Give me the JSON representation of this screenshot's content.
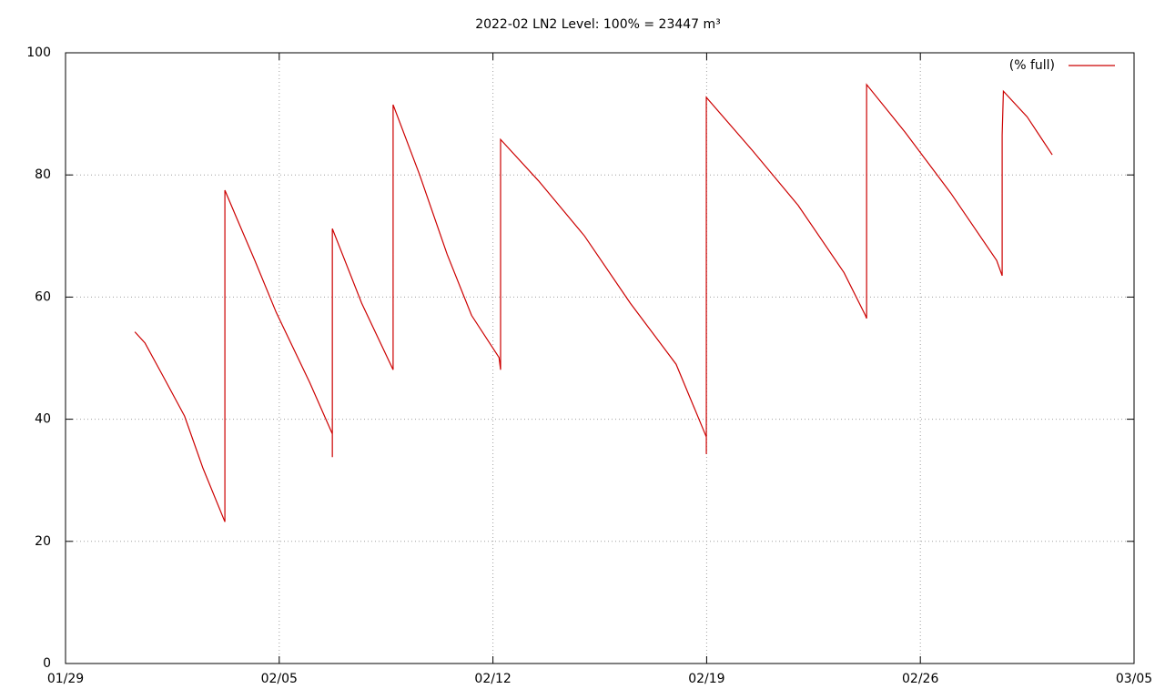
{
  "chart_data": {
    "type": "line",
    "title": "2022-02 LN2 Level: 100% = 23447 m³",
    "x": [
      31.27,
      31.6,
      32.2,
      32.9,
      33.5,
      34.22,
      34.22,
      34.6,
      35.2,
      35.9,
      37.0,
      37.74,
      37.74,
      37.74,
      38.7,
      39.73,
      39.73,
      40.6,
      41.5,
      42.3,
      43.2,
      43.25,
      43.25,
      44.5,
      46.0,
      47.5,
      49.0,
      49.99,
      49.99,
      49.99,
      51.5,
      53.0,
      54.5,
      55.2,
      55.24,
      55.24,
      56.5,
      58.0,
      59.5,
      59.68,
      59.68,
      59.72,
      60.5,
      61.32
    ],
    "series": [
      {
        "name": "(% full)",
        "color": "#cc0000",
        "values": [
          54.3,
          52.5,
          47,
          40.5,
          32,
          23.2,
          77.5,
          73,
          66,
          57.5,
          46,
          37.6,
          33.8,
          71.2,
          59,
          48.1,
          91.5,
          80,
          67,
          57,
          50.1,
          48.1,
          85.8,
          79,
          70,
          59,
          49,
          37.1,
          34.3,
          92.7,
          84,
          75,
          64,
          57,
          56.5,
          94.8,
          87,
          77,
          66,
          63.5,
          86.5,
          93.7,
          89.5,
          83.3
        ]
      }
    ],
    "xlim": [
      29,
      64
    ],
    "xticks": [
      {
        "value": 29,
        "label": "01/29"
      },
      {
        "value": 36,
        "label": "02/05"
      },
      {
        "value": 43,
        "label": "02/12"
      },
      {
        "value": 50,
        "label": "02/19"
      },
      {
        "value": 57,
        "label": "02/26"
      },
      {
        "value": 64,
        "label": "03/05"
      }
    ],
    "ylim": [
      0,
      100
    ],
    "yticks": [
      0,
      20,
      40,
      60,
      80,
      100
    ],
    "grid": true,
    "legend": "top-right"
  }
}
